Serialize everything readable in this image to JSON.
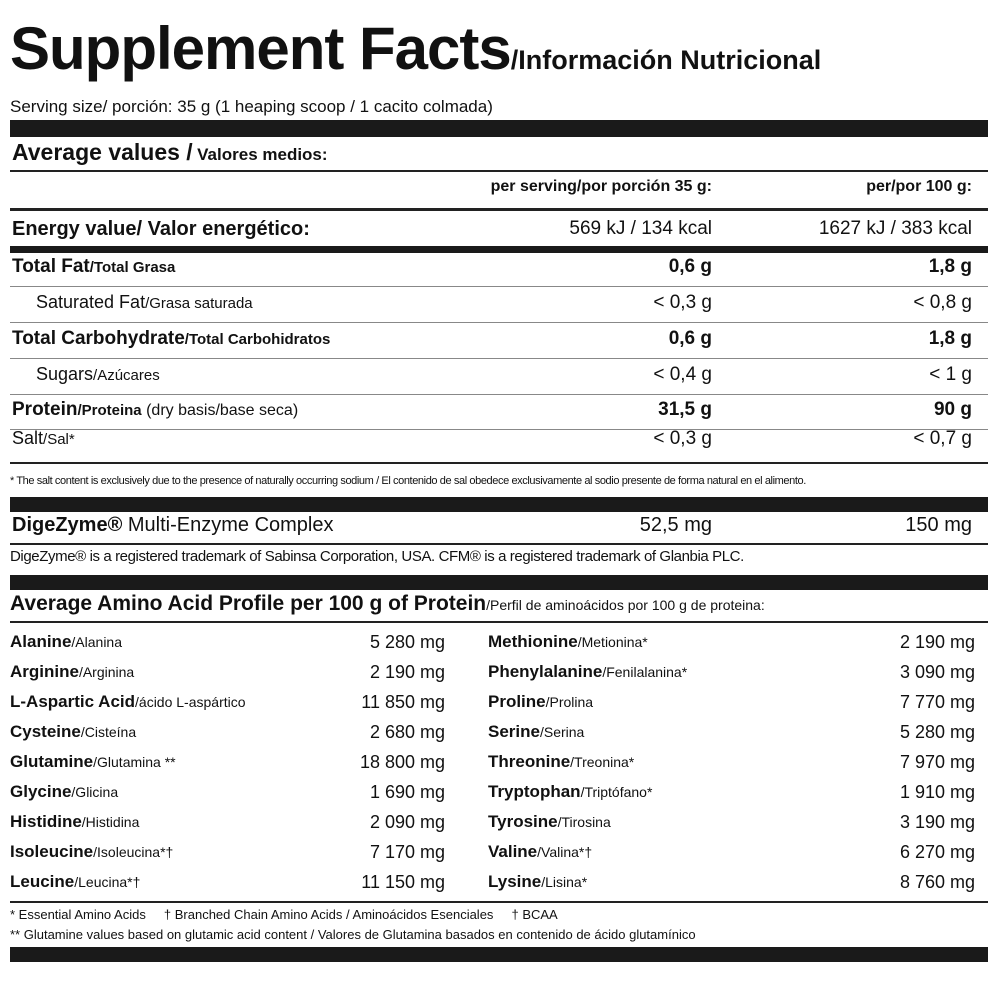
{
  "title": {
    "main": "Supplement Facts",
    "sub": "/Información Nutricional"
  },
  "serving": "Serving size/ porción: 35 g (1 heaping scoop / 1 cacito colmada)",
  "average": {
    "title": "Average values /",
    "title_es": "Valores medios:",
    "col1": "per serving/por porción 35 g:",
    "col2": "per/por 100 g:"
  },
  "energy": {
    "label": "Energy value/ Valor energético:",
    "v1": "569 kJ / 134 kcal",
    "v2": "1627 kJ / 383 kcal"
  },
  "nutrients": [
    {
      "en": "Total Fat",
      "es": "/Total Grasa",
      "v1": "0,6 g",
      "v2": "1,8 g"
    },
    {
      "en": "Saturated Fat",
      "es": "/Grasa saturada",
      "v1": "< 0,3 g",
      "v2": "< 0,8 g"
    },
    {
      "en": "Total Carbohydrate",
      "es": "/Total Carbohidratos",
      "v1": "0,6 g",
      "v2": "1,8 g"
    },
    {
      "en": "Sugars",
      "es": "/Azúcares",
      "v1": "< 0,4 g",
      "v2": "< 1 g"
    },
    {
      "en": "Protein",
      "es": "/Proteina",
      "extra": " (dry basis/base seca)",
      "v1": "31,5 g",
      "v2": "90 g"
    },
    {
      "en": "Salt",
      "es": "/Sal*",
      "v1": "< 0,3 g",
      "v2": "< 0,7 g"
    }
  ],
  "salt_note": "* The salt content is exclusively due to the presence of naturally occurring sodium / El contenido de sal obedece exclusivamente al sodio presente de forma natural en el alimento.",
  "digezyme": {
    "brand": "DigeZyme®",
    "label": " Multi-Enzyme Complex",
    "v1": "52,5 mg",
    "v2": "150 mg"
  },
  "trademark": "DigeZyme® is a registered trademark of Sabinsa Corporation, USA. CFM® is a registered trademark of Glanbia PLC.",
  "amino": {
    "title": "Average Amino Acid Profile per 100 g of Protein",
    "title_es": "/Perfil de aminoácidos por 100 g de proteina:",
    "left": [
      {
        "en": "Alanine",
        "es": "/Alanina",
        "v": "5 280 mg"
      },
      {
        "en": "Arginine",
        "es": "/Arginina",
        "v": "2 190 mg"
      },
      {
        "en": "L-Aspartic Acid",
        "es": "/ácido L-aspártico",
        "v": "11 850 mg"
      },
      {
        "en": "Cysteine",
        "es": "/Cisteína",
        "v": "2 680 mg"
      },
      {
        "en": "Glutamine",
        "es": "/Glutamina **",
        "v": "18 800 mg"
      },
      {
        "en": "Glycine",
        "es": "/Glicina",
        "v": "1 690 mg"
      },
      {
        "en": "Histidine",
        "es": "/Histidina",
        "v": "2 090 mg"
      },
      {
        "en": "Isoleucine",
        "es": "/Isoleucina*†",
        "v": "7 170 mg"
      },
      {
        "en": "Leucine",
        "es": "/Leucina*†",
        "v": "11 150 mg"
      }
    ],
    "right": [
      {
        "en": "Methionine",
        "es": "/Metionina*",
        "v": "2 190 mg"
      },
      {
        "en": "Phenylalanine",
        "es": "/Fenilalanina*",
        "v": "3 090 mg"
      },
      {
        "en": "Proline",
        "es": "/Prolina",
        "v": "7 770 mg"
      },
      {
        "en": "Serine",
        "es": "/Serina",
        "v": "5 280 mg"
      },
      {
        "en": "Threonine",
        "es": "/Treonina*",
        "v": "7 970 mg"
      },
      {
        "en": "Tryptophan",
        "es": "/Triptófano*",
        "v": "1 910 mg"
      },
      {
        "en": "Tyrosine",
        "es": "/Tirosina",
        "v": "3 190 mg"
      },
      {
        "en": "Valine",
        "es": "/Valina*†",
        "v": "6 270 mg"
      },
      {
        "en": "Lysine",
        "es": "/Lisina*",
        "v": "8 760 mg"
      }
    ]
  },
  "footnotes": [
    "* Essential Amino Acids     † Branched Chain Amino Acids / Aminoácidos Esenciales     † BCAA",
    "** Glutamine values based on glutamic acid content / Valores de Glutamina basados en contenido de ácido glutamínico"
  ]
}
